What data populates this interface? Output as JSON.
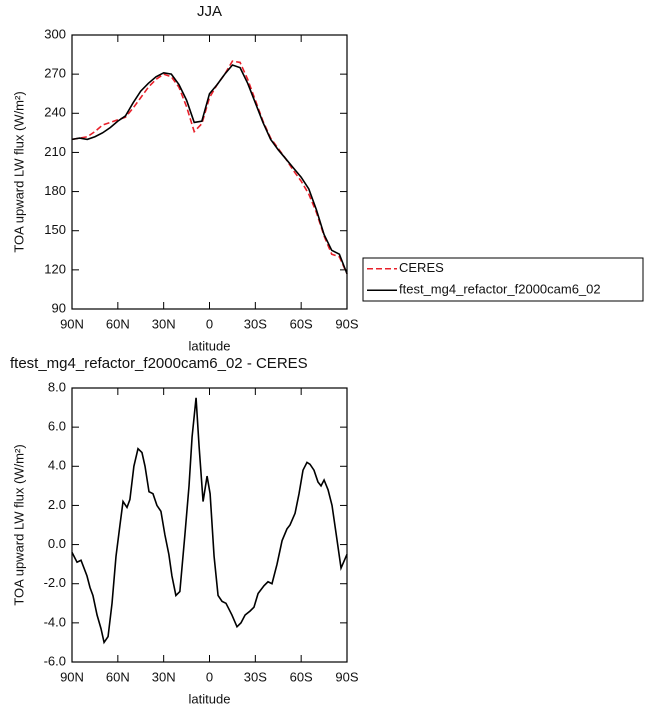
{
  "chart_data": [
    {
      "type": "line",
      "title": "JJA",
      "xlabel": "latitude",
      "ylabel": "TOA upward LW flux (W/m²)",
      "x": [
        90,
        85,
        80,
        75,
        70,
        65,
        60,
        55,
        50,
        45,
        40,
        35,
        30,
        25,
        20,
        15,
        10,
        5,
        0,
        -5,
        -10,
        -15,
        -20,
        -25,
        -30,
        -35,
        -40,
        -45,
        -50,
        -55,
        -60,
        -65,
        -70,
        -75,
        -80,
        -85,
        -90
      ],
      "series": [
        {
          "name": "CERES",
          "color": "#e8202a",
          "dashed": true,
          "values": [
            220,
            221,
            222,
            226,
            231,
            233,
            235,
            237,
            244,
            252,
            260,
            266,
            270,
            268,
            260,
            245,
            226,
            232,
            252,
            262,
            270,
            280,
            279,
            266,
            250,
            234,
            221,
            213,
            205,
            196,
            188,
            178,
            164,
            146,
            132,
            130,
            117
          ]
        },
        {
          "name": "ftest_mg4_refactor_f2000cam6_02",
          "color": "#000000",
          "dashed": false,
          "values": [
            220,
            221,
            220,
            222,
            225,
            229,
            234,
            238,
            248,
            257,
            263,
            268,
            271,
            270,
            262,
            250,
            233,
            234,
            255,
            262,
            270,
            277,
            275,
            263,
            248,
            233,
            220,
            212,
            205,
            198,
            191,
            182,
            166,
            147,
            135,
            132,
            117
          ]
        }
      ],
      "xlim": [
        90,
        -90
      ],
      "xticks": [
        {
          "value": 90,
          "label": "90N"
        },
        {
          "value": 60,
          "label": "60N"
        },
        {
          "value": 30,
          "label": "30N"
        },
        0,
        {
          "value": -30,
          "label": "30S"
        },
        {
          "value": -60,
          "label": "60S"
        },
        {
          "value": -90,
          "label": "90S"
        }
      ],
      "ylim": [
        90,
        300
      ],
      "yticks": [
        90,
        120,
        150,
        180,
        210,
        240,
        270,
        300
      ],
      "legend": "right"
    },
    {
      "type": "line",
      "title": "ftest_mg4_refactor_f2000cam6_02 - CERES",
      "xlabel": "latitude",
      "ylabel": "TOA upward LW flux (W/m²)",
      "x": [
        90,
        86.7,
        84.1,
        80.2,
        78.2,
        76.3,
        73.6,
        71.0,
        69.0,
        66.4,
        63.8,
        61.2,
        58.6,
        56.6,
        54.0,
        52.1,
        49.5,
        46.8,
        44.2,
        42.2,
        39.6,
        37.0,
        34.4,
        31.8,
        29.2,
        26.6,
        24.6,
        22.0,
        19.4,
        16.1,
        13.4,
        11.4,
        8.8,
        6.8,
        4.2,
        1.6,
        -0.4,
        -3.0,
        -5.6,
        -8.2,
        -10.8,
        -14.7,
        -18.0,
        -20.6,
        -23.3,
        -26.5,
        -29.1,
        -31.8,
        -35.7,
        -38.3,
        -40.9,
        -44.2,
        -47.5,
        -50.7,
        -52.7,
        -56.0,
        -58.6,
        -61.2,
        -63.8,
        -65.8,
        -68.4,
        -71.0,
        -73.0,
        -75.0,
        -77.6,
        -80.2,
        -82.8,
        -86.1,
        -90
      ],
      "series": [
        {
          "name": "ftest_mg4_refactor_f2000cam6_02 - CERES",
          "color": "#000000",
          "dashed": false,
          "values": [
            -0.4,
            -0.9,
            -0.8,
            -1.6,
            -2.2,
            -2.6,
            -3.6,
            -4.3,
            -5.0,
            -4.7,
            -3.0,
            -0.6,
            1.0,
            2.2,
            1.9,
            2.3,
            4.0,
            4.9,
            4.7,
            4.0,
            2.7,
            2.6,
            2.0,
            1.7,
            0.5,
            -0.5,
            -1.6,
            -2.6,
            -2.4,
            0.5,
            3.0,
            5.5,
            7.5,
            5.0,
            2.2,
            3.5,
            2.6,
            -0.6,
            -2.6,
            -2.9,
            -3.0,
            -3.6,
            -4.2,
            -4.0,
            -3.6,
            -3.4,
            -3.2,
            -2.5,
            -2.1,
            -1.9,
            -2.0,
            -1.0,
            0.2,
            0.8,
            1.0,
            1.6,
            2.6,
            3.8,
            4.2,
            4.1,
            3.8,
            3.2,
            3.0,
            3.3,
            2.8,
            2.0,
            0.6,
            -1.2,
            -0.5
          ]
        }
      ],
      "xlim": [
        90,
        -90
      ],
      "xticks": [
        {
          "value": 90,
          "label": "90N"
        },
        {
          "value": 60,
          "label": "60N"
        },
        {
          "value": 30,
          "label": "30N"
        },
        0,
        {
          "value": -30,
          "label": "30S"
        },
        {
          "value": -60,
          "label": "60S"
        },
        {
          "value": -90,
          "label": "90S"
        }
      ],
      "ylim": [
        -6,
        8
      ],
      "yticks": [
        {
          "value": -6,
          "label": "-6.0"
        },
        {
          "value": -4,
          "label": "-4.0"
        },
        {
          "value": -2,
          "label": "-2.0"
        },
        {
          "value": 0,
          "label": "0.0"
        },
        {
          "value": 2,
          "label": "2.0"
        },
        {
          "value": 4,
          "label": "4.0"
        },
        {
          "value": 6,
          "label": "6.0"
        },
        {
          "value": 8,
          "label": "8.0"
        }
      ]
    }
  ]
}
